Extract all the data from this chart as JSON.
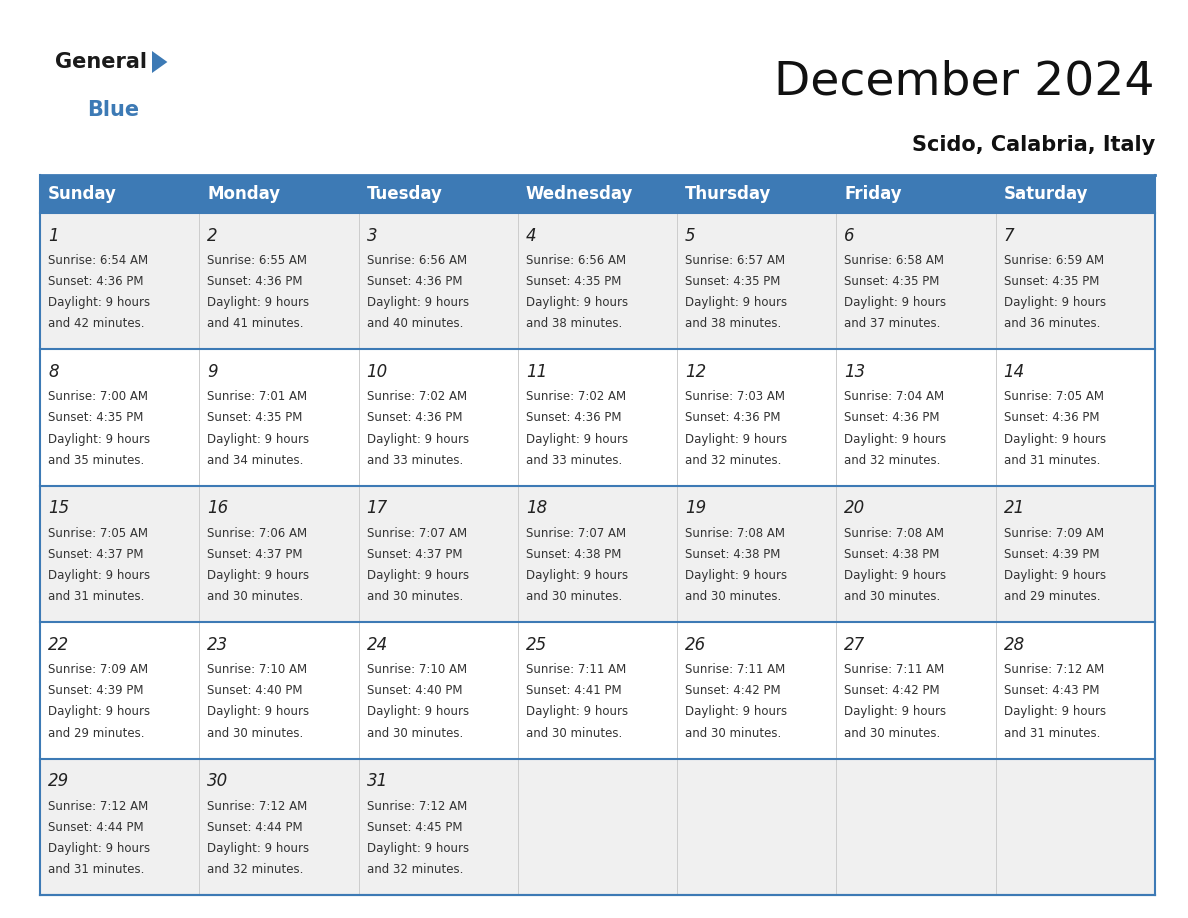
{
  "title": "December 2024",
  "subtitle": "Scido, Calabria, Italy",
  "header_bg": "#3d7ab5",
  "header_text": "#ffffff",
  "cell_bg_odd": "#f0f0f0",
  "cell_bg_even": "#ffffff",
  "border_color": "#3d7ab5",
  "sep_line_color": "#aaaaaa",
  "day_names": [
    "Sunday",
    "Monday",
    "Tuesday",
    "Wednesday",
    "Thursday",
    "Friday",
    "Saturday"
  ],
  "title_fontsize": 34,
  "subtitle_fontsize": 15,
  "header_fontsize": 12,
  "day_num_fontsize": 12,
  "cell_fontsize": 8.5,
  "logo_general_fontsize": 15,
  "logo_blue_fontsize": 15,
  "calendar_data": [
    [
      {
        "day": 1,
        "sunrise": "6:54 AM",
        "sunset": "4:36 PM",
        "daylight": "9 hours and 42 minutes"
      },
      {
        "day": 2,
        "sunrise": "6:55 AM",
        "sunset": "4:36 PM",
        "daylight": "9 hours and 41 minutes"
      },
      {
        "day": 3,
        "sunrise": "6:56 AM",
        "sunset": "4:36 PM",
        "daylight": "9 hours and 40 minutes"
      },
      {
        "day": 4,
        "sunrise": "6:56 AM",
        "sunset": "4:35 PM",
        "daylight": "9 hours and 38 minutes"
      },
      {
        "day": 5,
        "sunrise": "6:57 AM",
        "sunset": "4:35 PM",
        "daylight": "9 hours and 38 minutes"
      },
      {
        "day": 6,
        "sunrise": "6:58 AM",
        "sunset": "4:35 PM",
        "daylight": "9 hours and 37 minutes"
      },
      {
        "day": 7,
        "sunrise": "6:59 AM",
        "sunset": "4:35 PM",
        "daylight": "9 hours and 36 minutes"
      }
    ],
    [
      {
        "day": 8,
        "sunrise": "7:00 AM",
        "sunset": "4:35 PM",
        "daylight": "9 hours and 35 minutes"
      },
      {
        "day": 9,
        "sunrise": "7:01 AM",
        "sunset": "4:35 PM",
        "daylight": "9 hours and 34 minutes"
      },
      {
        "day": 10,
        "sunrise": "7:02 AM",
        "sunset": "4:36 PM",
        "daylight": "9 hours and 33 minutes"
      },
      {
        "day": 11,
        "sunrise": "7:02 AM",
        "sunset": "4:36 PM",
        "daylight": "9 hours and 33 minutes"
      },
      {
        "day": 12,
        "sunrise": "7:03 AM",
        "sunset": "4:36 PM",
        "daylight": "9 hours and 32 minutes"
      },
      {
        "day": 13,
        "sunrise": "7:04 AM",
        "sunset": "4:36 PM",
        "daylight": "9 hours and 32 minutes"
      },
      {
        "day": 14,
        "sunrise": "7:05 AM",
        "sunset": "4:36 PM",
        "daylight": "9 hours and 31 minutes"
      }
    ],
    [
      {
        "day": 15,
        "sunrise": "7:05 AM",
        "sunset": "4:37 PM",
        "daylight": "9 hours and 31 minutes"
      },
      {
        "day": 16,
        "sunrise": "7:06 AM",
        "sunset": "4:37 PM",
        "daylight": "9 hours and 30 minutes"
      },
      {
        "day": 17,
        "sunrise": "7:07 AM",
        "sunset": "4:37 PM",
        "daylight": "9 hours and 30 minutes"
      },
      {
        "day": 18,
        "sunrise": "7:07 AM",
        "sunset": "4:38 PM",
        "daylight": "9 hours and 30 minutes"
      },
      {
        "day": 19,
        "sunrise": "7:08 AM",
        "sunset": "4:38 PM",
        "daylight": "9 hours and 30 minutes"
      },
      {
        "day": 20,
        "sunrise": "7:08 AM",
        "sunset": "4:38 PM",
        "daylight": "9 hours and 30 minutes"
      },
      {
        "day": 21,
        "sunrise": "7:09 AM",
        "sunset": "4:39 PM",
        "daylight": "9 hours and 29 minutes"
      }
    ],
    [
      {
        "day": 22,
        "sunrise": "7:09 AM",
        "sunset": "4:39 PM",
        "daylight": "9 hours and 29 minutes"
      },
      {
        "day": 23,
        "sunrise": "7:10 AM",
        "sunset": "4:40 PM",
        "daylight": "9 hours and 30 minutes"
      },
      {
        "day": 24,
        "sunrise": "7:10 AM",
        "sunset": "4:40 PM",
        "daylight": "9 hours and 30 minutes"
      },
      {
        "day": 25,
        "sunrise": "7:11 AM",
        "sunset": "4:41 PM",
        "daylight": "9 hours and 30 minutes"
      },
      {
        "day": 26,
        "sunrise": "7:11 AM",
        "sunset": "4:42 PM",
        "daylight": "9 hours and 30 minutes"
      },
      {
        "day": 27,
        "sunrise": "7:11 AM",
        "sunset": "4:42 PM",
        "daylight": "9 hours and 30 minutes"
      },
      {
        "day": 28,
        "sunrise": "7:12 AM",
        "sunset": "4:43 PM",
        "daylight": "9 hours and 31 minutes"
      }
    ],
    [
      {
        "day": 29,
        "sunrise": "7:12 AM",
        "sunset": "4:44 PM",
        "daylight": "9 hours and 31 minutes"
      },
      {
        "day": 30,
        "sunrise": "7:12 AM",
        "sunset": "4:44 PM",
        "daylight": "9 hours and 32 minutes"
      },
      {
        "day": 31,
        "sunrise": "7:12 AM",
        "sunset": "4:45 PM",
        "daylight": "9 hours and 32 minutes"
      },
      null,
      null,
      null,
      null
    ]
  ]
}
